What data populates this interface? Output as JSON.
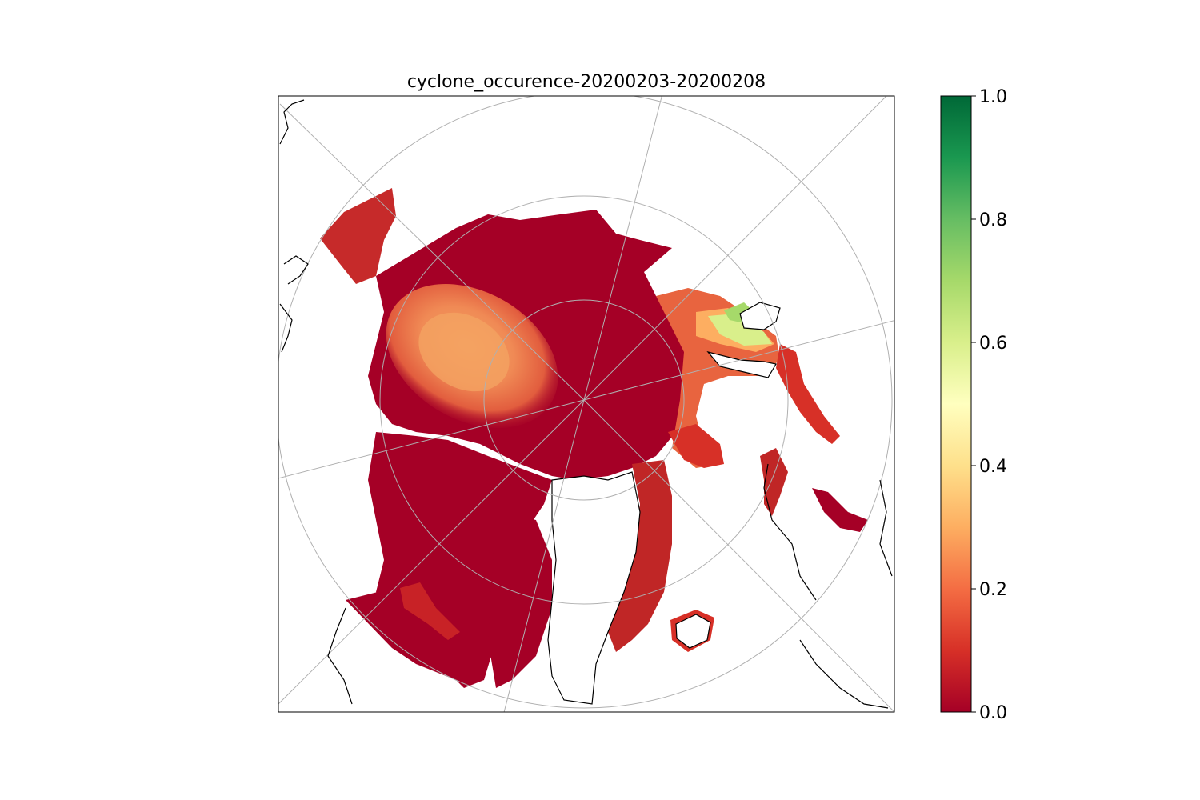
{
  "title": "cyclone_occurence-20200203-20200208",
  "colorbar": {
    "colormap": "RdYlGn",
    "ticks": [
      "0.0",
      "0.2",
      "0.4",
      "0.6",
      "0.8",
      "1.0"
    ],
    "range": [
      0.0,
      1.0
    ],
    "stops": [
      "#a50026",
      "#d73027",
      "#f46d43",
      "#fdae61",
      "#fee08b",
      "#ffffbf",
      "#d9ef8b",
      "#a6d96a",
      "#66bd63",
      "#1a9850",
      "#006837"
    ]
  },
  "map": {
    "projection": "north-polar-stereographic",
    "graticule": true,
    "coastlines": true,
    "dominant_value": 0.0,
    "colors": {
      "sea_ice_low": "#a50026",
      "mid_red": "#d73027",
      "orange": "#f46d43",
      "light_orange": "#f4a261",
      "yellow": "#fee08b",
      "light_green": "#d9ef8b",
      "green": "#66bd63"
    }
  }
}
